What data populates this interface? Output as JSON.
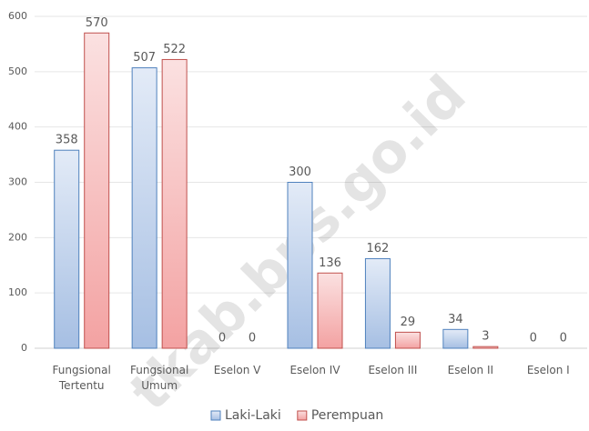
{
  "chart_data": {
    "type": "bar",
    "categories": [
      "Fungsional Tertentu",
      "Fungsional Umum",
      "Eselon V",
      "Eselon IV",
      "Eselon III",
      "Eselon II",
      "Eselon I"
    ],
    "series": [
      {
        "name": "Laki-Laki",
        "color": "#4f81bd",
        "values": [
          358,
          507,
          0,
          300,
          162,
          34,
          0
        ]
      },
      {
        "name": "Perempuan",
        "color": "#c0504d",
        "values": [
          570,
          522,
          0,
          136,
          29,
          3,
          0
        ]
      }
    ],
    "ylim": [
      0,
      600
    ],
    "yticks": [
      0,
      100,
      200,
      300,
      400,
      500,
      600
    ],
    "grid": true,
    "legend": "bottom",
    "watermark": "tkab.bps.go.id"
  }
}
